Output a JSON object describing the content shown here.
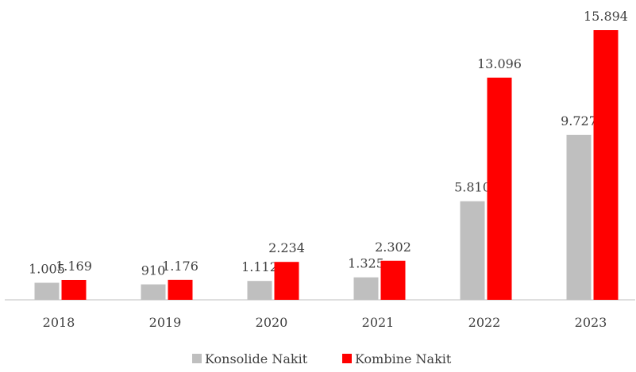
{
  "chart_data": {
    "type": "bar",
    "categories": [
      "2018",
      "2019",
      "2020",
      "2021",
      "2022",
      "2023"
    ],
    "series": [
      {
        "name": "Konsolide Nakit",
        "color": "#bfbfbf",
        "values": [
          1005,
          910,
          1112,
          1325,
          5810,
          9727
        ],
        "value_labels": [
          "1.005",
          "910",
          "1.112",
          "1.325",
          "5.810",
          "9.727"
        ]
      },
      {
        "name": "Kombine Nakit",
        "color": "#ff0000",
        "values": [
          1169,
          1176,
          2234,
          2302,
          13096,
          15894
        ],
        "value_labels": [
          "1.169",
          "1.176",
          "2.234",
          "2.302",
          "13.096",
          "15.894"
        ]
      }
    ],
    "legend": "bottom"
  }
}
